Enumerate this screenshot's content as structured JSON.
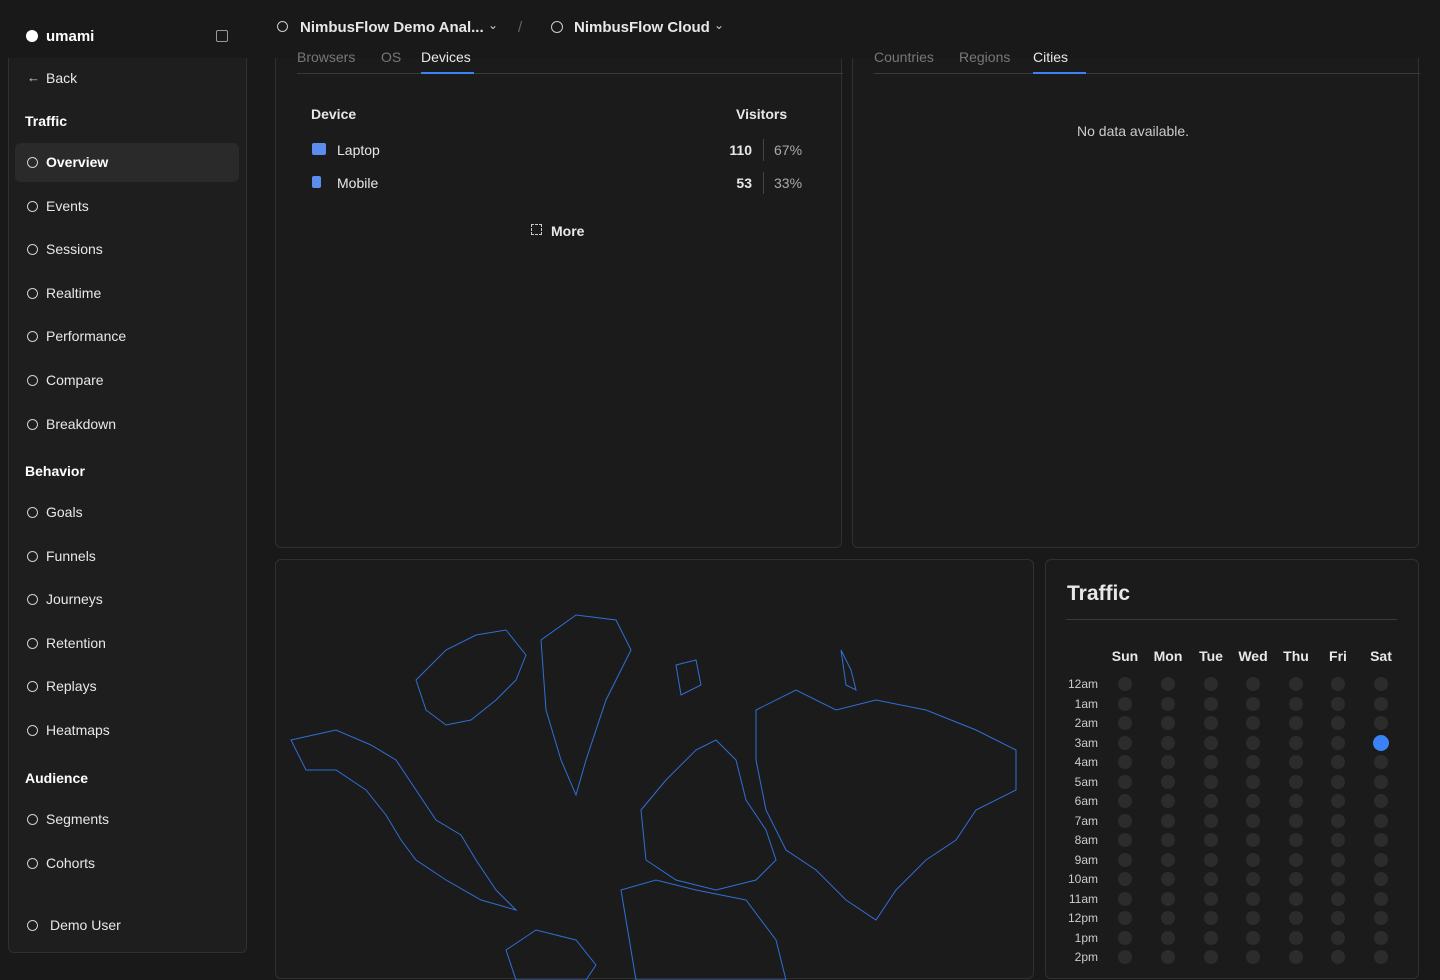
{
  "sidebar": {
    "brand": "umami",
    "back": "Back",
    "sections": [
      {
        "title": "Traffic",
        "items": [
          "Overview",
          "Events",
          "Sessions",
          "Realtime",
          "Performance",
          "Compare",
          "Breakdown"
        ]
      },
      {
        "title": "Behavior",
        "items": [
          "Goals",
          "Funnels",
          "Journeys",
          "Retention",
          "Replays",
          "Heatmaps"
        ]
      },
      {
        "title": "Audience",
        "items": [
          "Segments",
          "Cohorts"
        ]
      }
    ],
    "user": "Demo User"
  },
  "topbar": {
    "website": "NimbusFlow Demo Anal...",
    "team": "NimbusFlow Cloud"
  },
  "devices": {
    "tabs": [
      "Browsers",
      "OS",
      "Devices"
    ],
    "columns": [
      "Device",
      "Visitors"
    ],
    "rows": [
      [
        "Laptop",
        "110",
        "67%"
      ],
      [
        "Mobile",
        "53",
        "33%"
      ]
    ],
    "more": "More"
  },
  "locations": {
    "tabs": [
      "Countries",
      "Regions",
      "Cities"
    ],
    "empty": "No data available."
  },
  "traffic": {
    "title": "Traffic",
    "days": [
      "Sun",
      "Mon",
      "Tue",
      "Wed",
      "Thu",
      "Fri",
      "Sat"
    ],
    "hours": [
      "12am",
      "1am",
      "2am",
      "3am",
      "4am",
      "5am",
      "6am",
      "7am",
      "8am",
      "9am",
      "10am",
      "11am",
      "12pm",
      "1pm",
      "2pm"
    ],
    "cells": [
      [
        0,
        0,
        0,
        0,
        0,
        0,
        0
      ],
      [
        0,
        0,
        0,
        0,
        0,
        0,
        0
      ],
      [
        0,
        0,
        0,
        0,
        0,
        0,
        0
      ],
      [
        0,
        0,
        0,
        0,
        0,
        0,
        1
      ],
      [
        0,
        0,
        0,
        0,
        0,
        0,
        0
      ],
      [
        0,
        0,
        0,
        0,
        0,
        0,
        0
      ],
      [
        0,
        0,
        0,
        0,
        0,
        0,
        0
      ],
      [
        0,
        0,
        0,
        0,
        0,
        0,
        0
      ],
      [
        0,
        0,
        0,
        0,
        0,
        0,
        0
      ],
      [
        0,
        0,
        0,
        0,
        0,
        0,
        0
      ],
      [
        0,
        0,
        0,
        0,
        0,
        0,
        0
      ],
      [
        0,
        0,
        0,
        0,
        0,
        0,
        0
      ],
      [
        0,
        0,
        0,
        0,
        0,
        0,
        0
      ],
      [
        0,
        0,
        0,
        0,
        0,
        0,
        0
      ],
      [
        0,
        0,
        0,
        0,
        0,
        0,
        0
      ]
    ]
  }
}
